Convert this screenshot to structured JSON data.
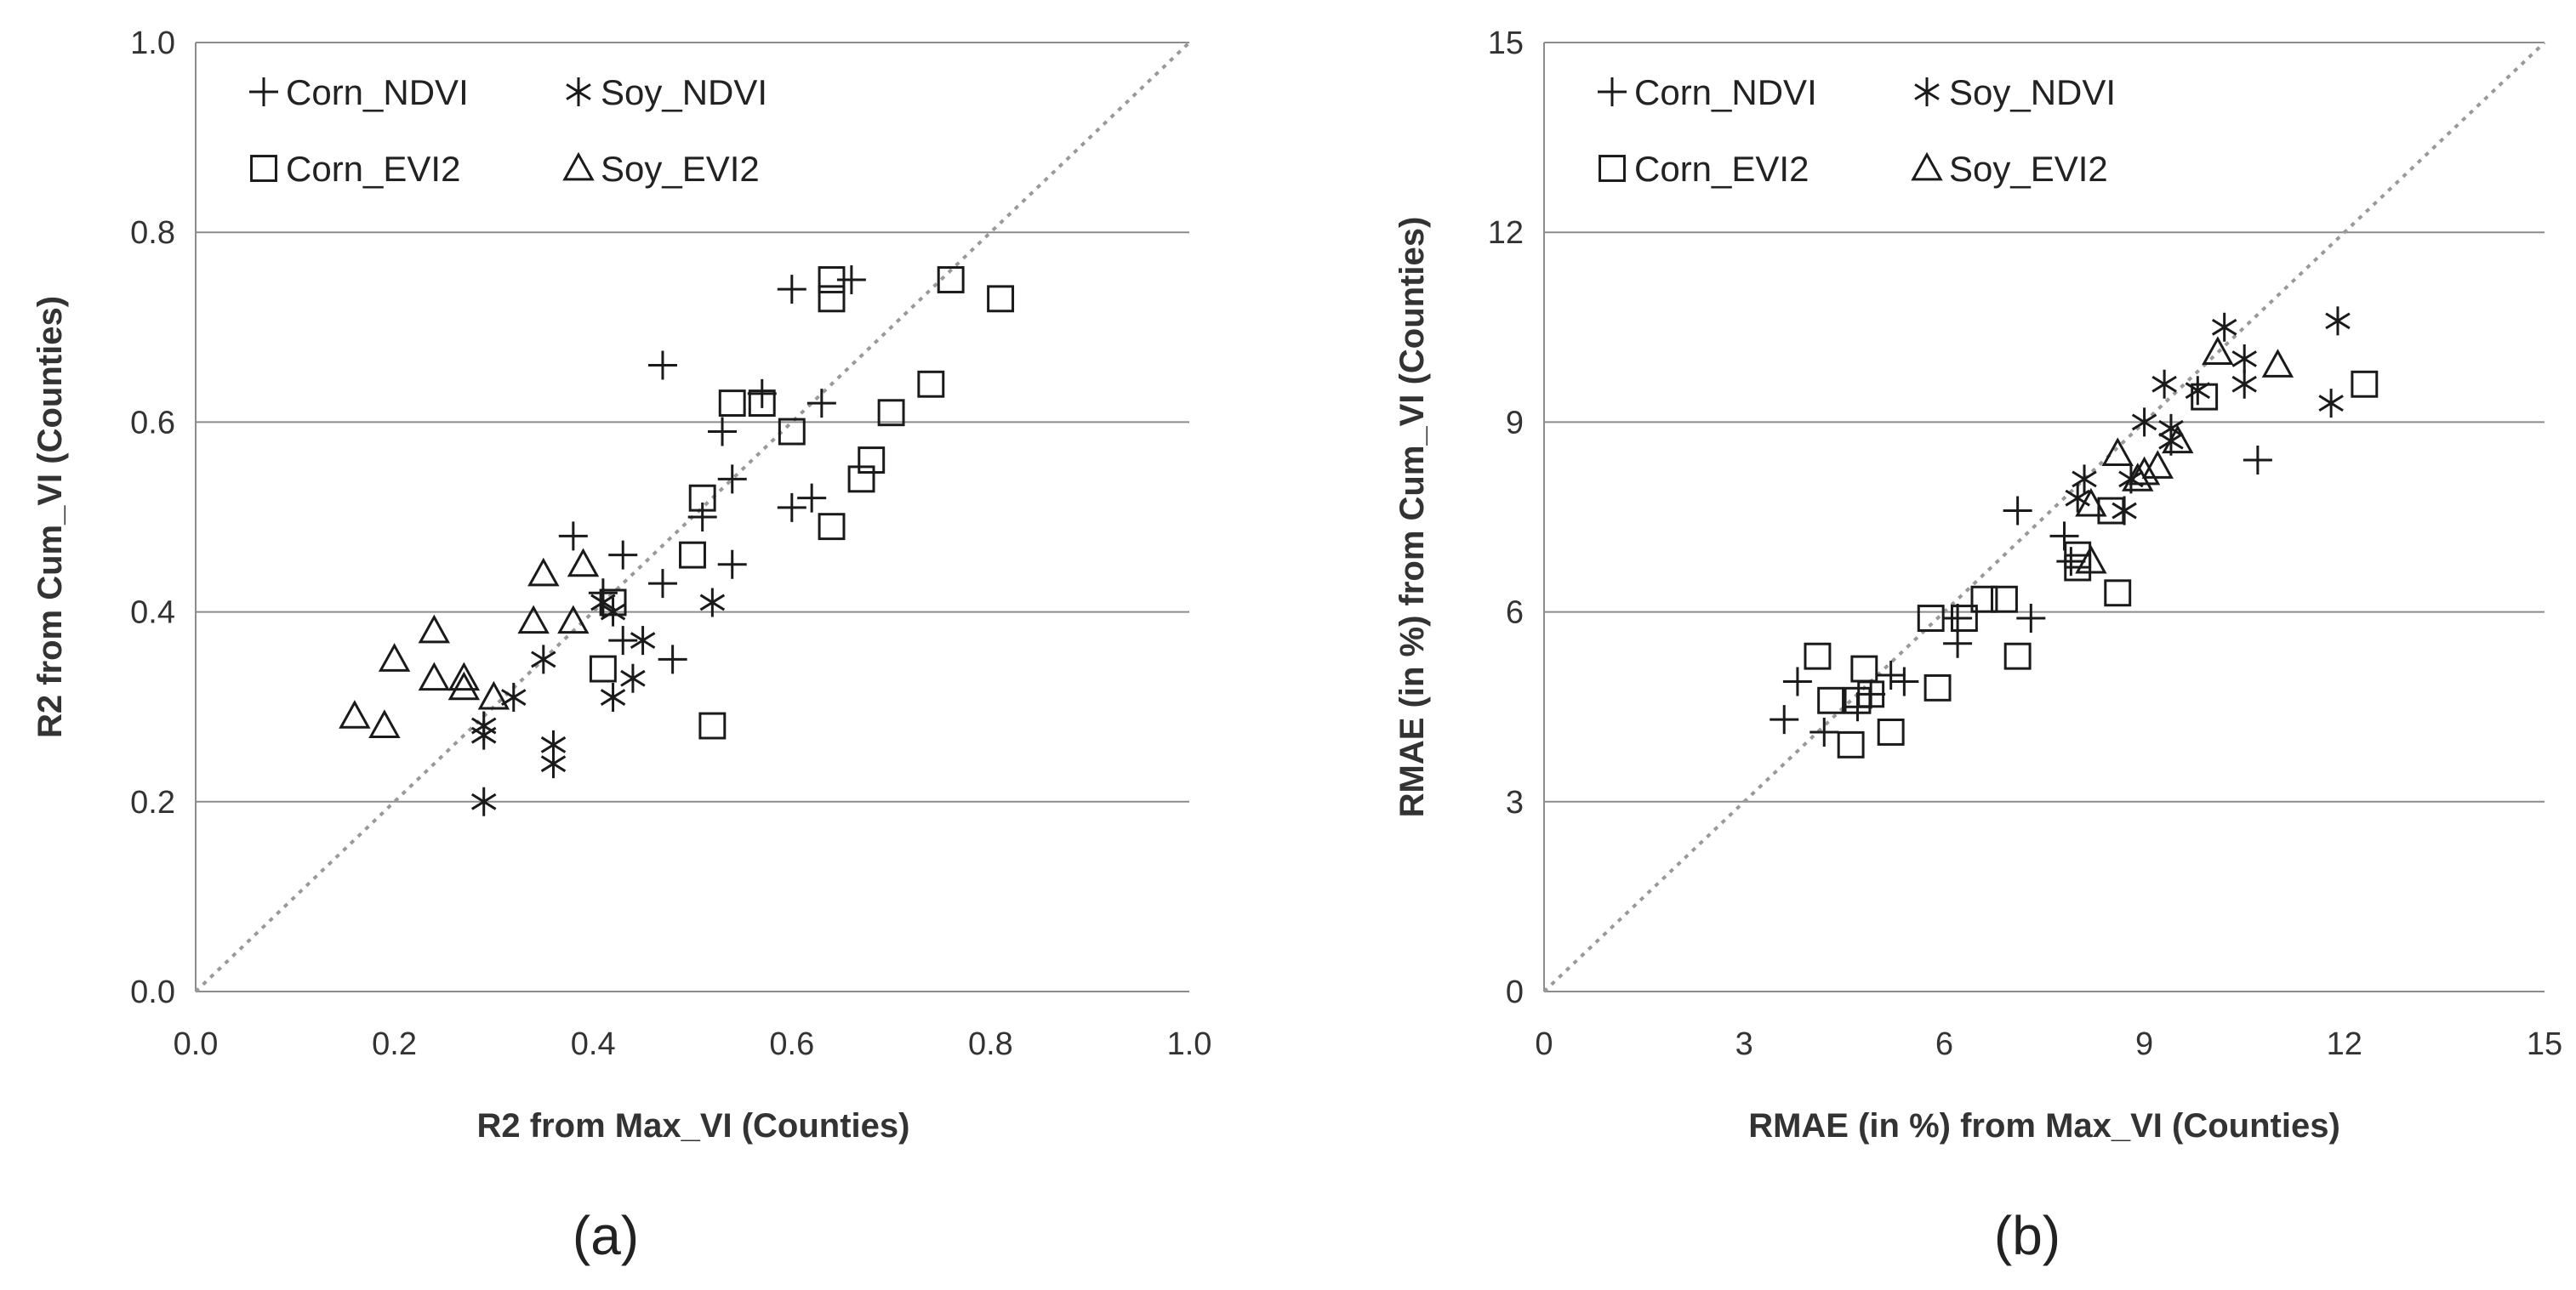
{
  "chart_data": [
    {
      "type": "scatter",
      "panel_label": "(a)",
      "xlabel": "R2  from Max_VI (Counties)",
      "ylabel": "R2  from Cum_VI (Counties)",
      "xlim": [
        0,
        1.0
      ],
      "ylim": [
        0,
        1.0
      ],
      "xticks": [
        "0.0",
        "0.2",
        "0.4",
        "0.6",
        "0.8",
        "1.0"
      ],
      "yticks": [
        "0.0",
        "0.2",
        "0.4",
        "0.6",
        "0.8",
        "1.0"
      ],
      "diagonal": "1:1 dotted line",
      "legend_placement": "top-left",
      "series": [
        {
          "name": "Corn_NDVI",
          "marker": "plus",
          "points": [
            [
              0.6,
              0.74
            ],
            [
              0.66,
              0.75
            ],
            [
              0.47,
              0.66
            ],
            [
              0.57,
              0.63
            ],
            [
              0.63,
              0.62
            ],
            [
              0.53,
              0.59
            ],
            [
              0.54,
              0.54
            ],
            [
              0.62,
              0.52
            ],
            [
              0.6,
              0.51
            ],
            [
              0.51,
              0.5
            ],
            [
              0.38,
              0.48
            ],
            [
              0.43,
              0.46
            ],
            [
              0.54,
              0.45
            ],
            [
              0.47,
              0.43
            ],
            [
              0.41,
              0.42
            ],
            [
              0.43,
              0.37
            ],
            [
              0.48,
              0.35
            ]
          ]
        },
        {
          "name": "Soy_NDVI",
          "marker": "asterisk",
          "points": [
            [
              0.52,
              0.41
            ],
            [
              0.41,
              0.41
            ],
            [
              0.42,
              0.4
            ],
            [
              0.45,
              0.37
            ],
            [
              0.35,
              0.35
            ],
            [
              0.44,
              0.33
            ],
            [
              0.42,
              0.31
            ],
            [
              0.32,
              0.31
            ],
            [
              0.29,
              0.28
            ],
            [
              0.29,
              0.27
            ],
            [
              0.36,
              0.26
            ],
            [
              0.36,
              0.24
            ],
            [
              0.29,
              0.2
            ]
          ]
        },
        {
          "name": "Corn_EVI2",
          "marker": "square",
          "points": [
            [
              0.64,
              0.75
            ],
            [
              0.76,
              0.75
            ],
            [
              0.81,
              0.73
            ],
            [
              0.64,
              0.73
            ],
            [
              0.74,
              0.64
            ],
            [
              0.54,
              0.62
            ],
            [
              0.57,
              0.62
            ],
            [
              0.7,
              0.61
            ],
            [
              0.6,
              0.59
            ],
            [
              0.68,
              0.56
            ],
            [
              0.67,
              0.54
            ],
            [
              0.51,
              0.52
            ],
            [
              0.64,
              0.49
            ],
            [
              0.5,
              0.46
            ],
            [
              0.42,
              0.41
            ],
            [
              0.41,
              0.34
            ],
            [
              0.52,
              0.28
            ]
          ]
        },
        {
          "name": "Soy_EVI2",
          "marker": "triangle",
          "points": [
            [
              0.35,
              0.44
            ],
            [
              0.39,
              0.45
            ],
            [
              0.34,
              0.39
            ],
            [
              0.38,
              0.39
            ],
            [
              0.24,
              0.38
            ],
            [
              0.2,
              0.35
            ],
            [
              0.24,
              0.33
            ],
            [
              0.27,
              0.33
            ],
            [
              0.27,
              0.32
            ],
            [
              0.3,
              0.31
            ],
            [
              0.16,
              0.29
            ],
            [
              0.19,
              0.28
            ]
          ]
        }
      ]
    },
    {
      "type": "scatter",
      "panel_label": "(b)",
      "xlabel": "RMAE (in %) from Max_VI (Counties)",
      "ylabel": "RMAE (in %) from Cum_VI (Counties)",
      "xlim": [
        0,
        15
      ],
      "ylim": [
        0,
        15
      ],
      "xticks": [
        "0",
        "3",
        "6",
        "9",
        "12",
        "15"
      ],
      "yticks": [
        "0",
        "3",
        "6",
        "9",
        "12",
        "15"
      ],
      "diagonal": "1:1 dotted line",
      "legend_placement": "top-left",
      "series": [
        {
          "name": "Corn_NDVI",
          "marker": "plus",
          "points": [
            [
              10.7,
              8.4
            ],
            [
              7.1,
              7.6
            ],
            [
              7.8,
              7.2
            ],
            [
              7.9,
              6.8
            ],
            [
              7.3,
              5.9
            ],
            [
              6.2,
              5.9
            ],
            [
              6.2,
              5.5
            ],
            [
              5.2,
              5.0
            ],
            [
              5.4,
              4.9
            ],
            [
              3.8,
              4.9
            ],
            [
              4.9,
              4.7
            ],
            [
              4.7,
              4.5
            ],
            [
              3.6,
              4.3
            ],
            [
              4.2,
              4.1
            ]
          ]
        },
        {
          "name": "Soy_NDVI",
          "marker": "asterisk",
          "points": [
            [
              10.2,
              10.5
            ],
            [
              11.9,
              10.6
            ],
            [
              10.5,
              10.0
            ],
            [
              10.5,
              9.6
            ],
            [
              11.8,
              9.3
            ],
            [
              9.3,
              9.6
            ],
            [
              9.8,
              9.5
            ],
            [
              9.0,
              9.0
            ],
            [
              9.4,
              8.9
            ],
            [
              9.4,
              8.7
            ],
            [
              8.8,
              8.1
            ],
            [
              8.1,
              8.1
            ],
            [
              8.0,
              7.8
            ],
            [
              8.7,
              7.6
            ]
          ]
        },
        {
          "name": "Corn_EVI2",
          "marker": "square",
          "points": [
            [
              12.3,
              9.6
            ],
            [
              9.9,
              9.4
            ],
            [
              8.5,
              7.6
            ],
            [
              8.0,
              6.9
            ],
            [
              8.0,
              6.7
            ],
            [
              6.6,
              6.2
            ],
            [
              6.9,
              6.2
            ],
            [
              8.6,
              6.3
            ],
            [
              6.3,
              5.9
            ],
            [
              5.8,
              5.9
            ],
            [
              7.1,
              5.3
            ],
            [
              5.9,
              4.8
            ],
            [
              4.1,
              5.3
            ],
            [
              4.8,
              5.1
            ],
            [
              4.9,
              4.7
            ],
            [
              4.7,
              4.6
            ],
            [
              4.3,
              4.6
            ],
            [
              5.2,
              4.1
            ],
            [
              4.6,
              3.9
            ]
          ]
        },
        {
          "name": "Soy_EVI2",
          "marker": "triangle",
          "points": [
            [
              10.1,
              10.1
            ],
            [
              11.0,
              9.9
            ],
            [
              9.5,
              8.7
            ],
            [
              8.6,
              8.5
            ],
            [
              9.2,
              8.3
            ],
            [
              9.0,
              8.2
            ],
            [
              8.9,
              8.1
            ],
            [
              8.2,
              7.7
            ],
            [
              8.2,
              6.8
            ]
          ]
        }
      ]
    }
  ]
}
